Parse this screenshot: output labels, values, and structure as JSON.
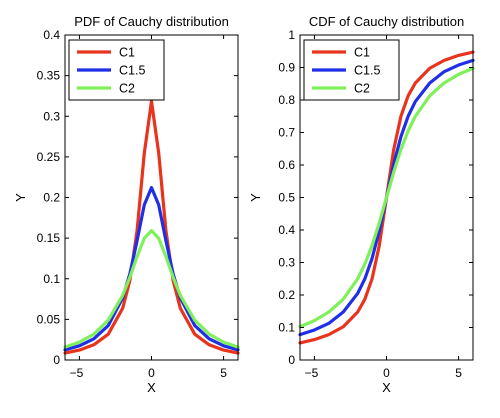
{
  "chart_data": [
    {
      "type": "line",
      "title": "PDF of Cauchy distribution",
      "xlabel": "X",
      "ylabel": "Y",
      "xlim": [
        -6,
        6
      ],
      "ylim": [
        0,
        0.4
      ],
      "xticks": [
        -5,
        0,
        5
      ],
      "yticks": [
        0,
        0.05,
        0.1,
        0.15,
        0.2,
        0.25,
        0.3,
        0.35,
        0.4
      ],
      "ytick_labels": [
        "0",
        "0.05",
        "0.1",
        "0.15",
        "0.2",
        "0.25",
        "0.3",
        "0.35",
        "0.4"
      ],
      "legend_position": "top-left",
      "x": [
        -6,
        -5,
        -4,
        -3,
        -2,
        -1.5,
        -1,
        -0.5,
        0,
        0.5,
        1,
        1.5,
        2,
        3,
        4,
        5,
        6
      ],
      "series": [
        {
          "name": "C1",
          "color": "#e8341c",
          "values": [
            0.0086,
            0.0122,
            0.0187,
            0.0318,
            0.0637,
            0.0979,
            0.1592,
            0.2546,
            0.3183,
            0.2546,
            0.1592,
            0.0979,
            0.0637,
            0.0318,
            0.0187,
            0.0122,
            0.0086
          ]
        },
        {
          "name": "C1.5",
          "color": "#1f2fe8",
          "values": [
            0.0125,
            0.0175,
            0.0261,
            0.0424,
            0.0764,
            0.1061,
            0.1469,
            0.191,
            0.2122,
            0.191,
            0.1469,
            0.1061,
            0.0764,
            0.0424,
            0.0261,
            0.0175,
            0.0125
          ]
        },
        {
          "name": "C2",
          "color": "#7ff05a",
          "values": [
            0.0159,
            0.022,
            0.0318,
            0.049,
            0.0796,
            0.1019,
            0.1273,
            0.1498,
            0.1592,
            0.1498,
            0.1273,
            0.1019,
            0.0796,
            0.049,
            0.0318,
            0.022,
            0.0159
          ]
        }
      ]
    },
    {
      "type": "line",
      "title": "CDF of Cauchy distribution",
      "xlabel": "X",
      "ylabel": "Y",
      "xlim": [
        -6,
        6
      ],
      "ylim": [
        0,
        1
      ],
      "xticks": [
        -5,
        0,
        5
      ],
      "yticks": [
        0,
        0.1,
        0.2,
        0.3,
        0.4,
        0.5,
        0.6,
        0.7,
        0.8,
        0.9,
        1
      ],
      "ytick_labels": [
        "0",
        "0.1",
        "0.2",
        "0.3",
        "0.4",
        "0.5",
        "0.6",
        "0.7",
        "0.8",
        "0.9",
        "1"
      ],
      "legend_position": "top-left",
      "x": [
        -6,
        -5,
        -4,
        -3,
        -2,
        -1.5,
        -1,
        -0.5,
        0,
        0.5,
        1,
        1.5,
        2,
        3,
        4,
        5,
        6
      ],
      "series": [
        {
          "name": "C1",
          "color": "#e8341c",
          "values": [
            0.0526,
            0.0628,
            0.078,
            0.1024,
            0.1476,
            0.1872,
            0.25,
            0.3524,
            0.5,
            0.6476,
            0.75,
            0.8128,
            0.8524,
            0.8976,
            0.922,
            0.9372,
            0.9474
          ]
        },
        {
          "name": "C1.5",
          "color": "#1f2fe8",
          "values": [
            0.078,
            0.0924,
            0.1128,
            0.1476,
            0.2048,
            0.25,
            0.3128,
            0.3976,
            0.5,
            0.6024,
            0.6872,
            0.75,
            0.7952,
            0.8524,
            0.8872,
            0.9076,
            0.922
          ]
        },
        {
          "name": "C2",
          "color": "#7ff05a",
          "values": [
            0.1024,
            0.1211,
            0.1476,
            0.1872,
            0.25,
            0.2952,
            0.3524,
            0.422,
            0.5,
            0.578,
            0.6476,
            0.7048,
            0.75,
            0.8128,
            0.8524,
            0.8789,
            0.8976
          ]
        }
      ]
    }
  ]
}
